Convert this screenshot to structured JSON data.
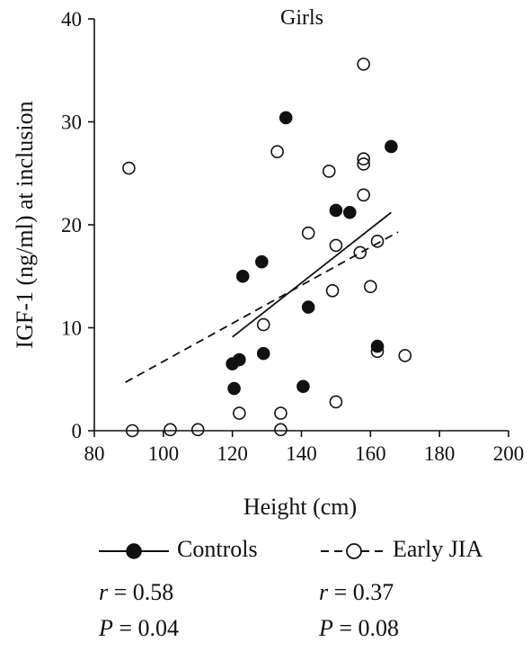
{
  "chart_data": {
    "type": "scatter",
    "title": "Girls",
    "xlabel": "Height (cm)",
    "ylabel": "IGF-1 (ng/ml) at inclusion",
    "xlim": [
      80,
      200
    ],
    "ylim": [
      0,
      40
    ],
    "xticks": [
      "80",
      "100",
      "120",
      "140",
      "160",
      "180",
      "200"
    ],
    "yticks": [
      "0",
      "10",
      "20",
      "30",
      "40"
    ],
    "grid": false,
    "legend_placement": "bottom",
    "series": [
      {
        "name": "Controls",
        "marker": "filled-circle",
        "line": "solid",
        "points": [
          {
            "x": 120,
            "y": 6.5
          },
          {
            "x": 120.5,
            "y": 4.1
          },
          {
            "x": 122,
            "y": 6.9
          },
          {
            "x": 123,
            "y": 15.0
          },
          {
            "x": 128.5,
            "y": 16.4
          },
          {
            "x": 129,
            "y": 7.5
          },
          {
            "x": 135.5,
            "y": 30.4
          },
          {
            "x": 140.5,
            "y": 4.3
          },
          {
            "x": 142,
            "y": 12.0
          },
          {
            "x": 150,
            "y": 21.4
          },
          {
            "x": 154,
            "y": 21.2
          },
          {
            "x": 162,
            "y": 8.2
          },
          {
            "x": 166,
            "y": 27.6
          }
        ],
        "fit": {
          "x": [
            120,
            166
          ],
          "y": [
            9.1,
            21.2
          ]
        }
      },
      {
        "name": "Early JIA",
        "marker": "open-circle",
        "line": "dashed",
        "points": [
          {
            "x": 90,
            "y": 25.5
          },
          {
            "x": 91,
            "y": 0
          },
          {
            "x": 102,
            "y": 0.1
          },
          {
            "x": 110,
            "y": 0.1
          },
          {
            "x": 122,
            "y": 1.7
          },
          {
            "x": 129,
            "y": 10.3
          },
          {
            "x": 133,
            "y": 27.1
          },
          {
            "x": 134,
            "y": 1.7
          },
          {
            "x": 134,
            "y": 0.1
          },
          {
            "x": 142,
            "y": 19.2
          },
          {
            "x": 148,
            "y": 25.2
          },
          {
            "x": 149,
            "y": 13.6
          },
          {
            "x": 150,
            "y": 18.0
          },
          {
            "x": 150,
            "y": 2.8
          },
          {
            "x": 157,
            "y": 17.3
          },
          {
            "x": 158,
            "y": 35.6
          },
          {
            "x": 158,
            "y": 26.4
          },
          {
            "x": 158,
            "y": 25.9
          },
          {
            "x": 158,
            "y": 22.9
          },
          {
            "x": 160,
            "y": 14.0
          },
          {
            "x": 162,
            "y": 18.4
          },
          {
            "x": 162,
            "y": 7.7
          },
          {
            "x": 170,
            "y": 7.3
          }
        ],
        "fit": {
          "x": [
            89,
            168
          ],
          "y": [
            4.7,
            19.3
          ]
        }
      }
    ]
  },
  "legend": {
    "controls_label": "Controls",
    "early_jia_label": "Early JIA"
  },
  "stats": {
    "controls": {
      "r_var": "r",
      "r_text": " = 0.58",
      "p_var": "P",
      "p_text": " = 0.04"
    },
    "early_jia": {
      "r_var": "r",
      "r_text": " = 0.37",
      "p_var": "P",
      "p_text": " = 0.08"
    }
  }
}
